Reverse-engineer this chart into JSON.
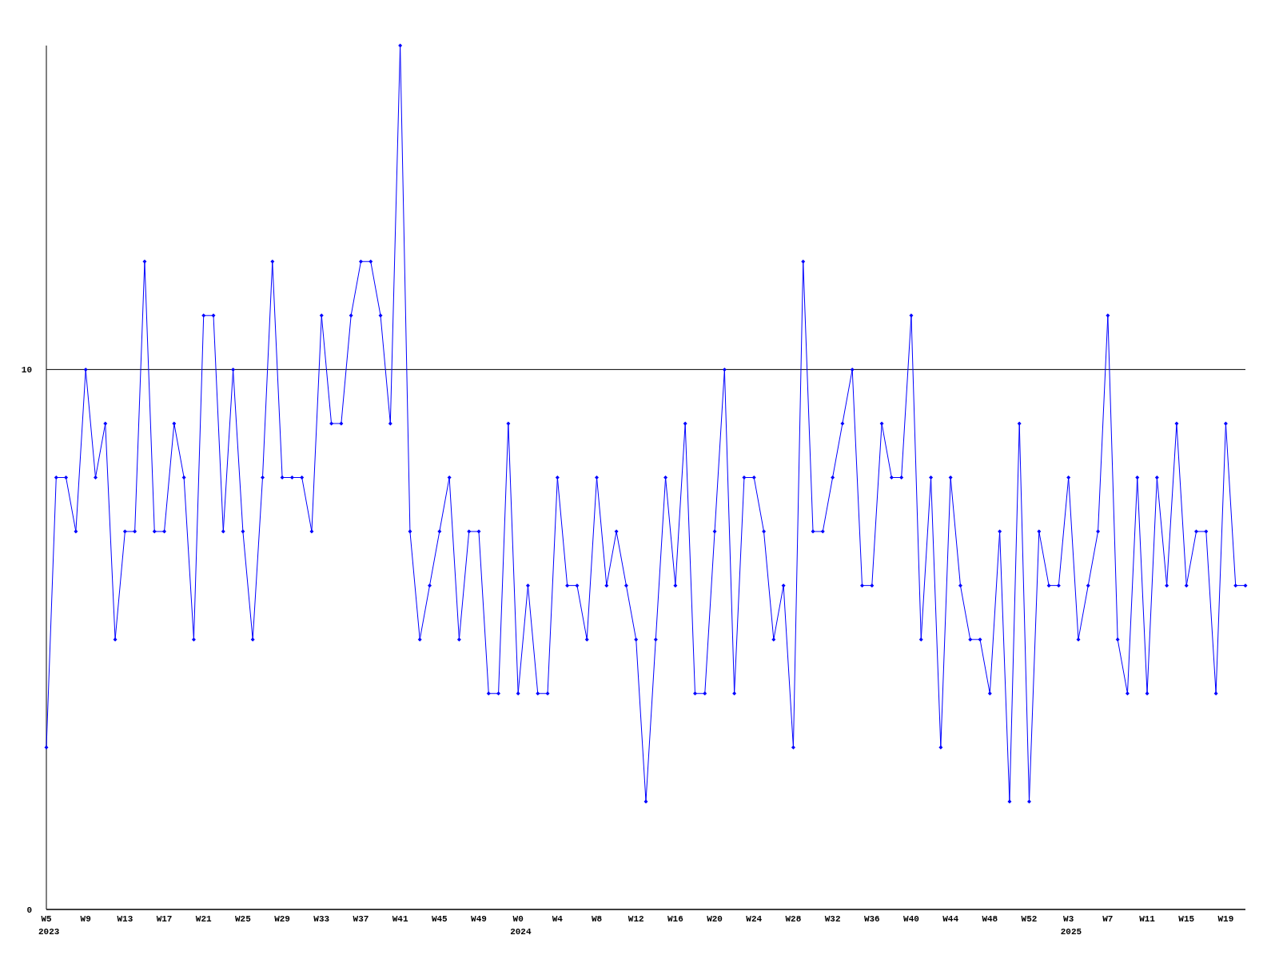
{
  "chart_data": {
    "type": "line",
    "categories": [
      "W5\n2023",
      null,
      null,
      null,
      "W9",
      null,
      null,
      null,
      "W13",
      null,
      null,
      null,
      "W17",
      null,
      null,
      null,
      "W21",
      null,
      null,
      null,
      "W25",
      null,
      null,
      null,
      "W29",
      null,
      null,
      null,
      "W33",
      null,
      null,
      null,
      "W37",
      null,
      null,
      null,
      "W41",
      null,
      null,
      null,
      "W45",
      null,
      null,
      null,
      "W49",
      null,
      null,
      null,
      "W0\n2024",
      null,
      null,
      null,
      "W4",
      null,
      null,
      null,
      "W8",
      null,
      null,
      null,
      "W12",
      null,
      null,
      null,
      "W16",
      null,
      null,
      null,
      "W20",
      null,
      null,
      null,
      "W24",
      null,
      null,
      null,
      "W28",
      null,
      null,
      null,
      "W32",
      null,
      null,
      null,
      "W36",
      null,
      null,
      null,
      "W40",
      null,
      null,
      null,
      "W44",
      null,
      null,
      null,
      "W48",
      null,
      null,
      null,
      "W52",
      null,
      null,
      null,
      "W3\n2025",
      null,
      null,
      null,
      "W7",
      null,
      null,
      null,
      "W11",
      null,
      null,
      null,
      "W15",
      null,
      null,
      null,
      "W19",
      null,
      null
    ],
    "series": [
      {
        "color": "#0000ff",
        "values": [
          3,
          8,
          8,
          7,
          10,
          8,
          9,
          5,
          7,
          7,
          12,
          7,
          7,
          9,
          8,
          5,
          11,
          11,
          7,
          10,
          7,
          5,
          8,
          12,
          8,
          8,
          8,
          7,
          11,
          9,
          9,
          11,
          12,
          12,
          11,
          9,
          16,
          7,
          5,
          6,
          7,
          8,
          5,
          7,
          7,
          4,
          4,
          9,
          4,
          6,
          4,
          4,
          8,
          6,
          6,
          5,
          8,
          6,
          7,
          6,
          5,
          2,
          5,
          8,
          6,
          9,
          4,
          4,
          7,
          10,
          4,
          8,
          8,
          7,
          5,
          6,
          3,
          12,
          7,
          7,
          8,
          9,
          10,
          6,
          6,
          9,
          8,
          8,
          11,
          5,
          8,
          3,
          8,
          6,
          5,
          5,
          4,
          7,
          2,
          9,
          2,
          7,
          6,
          6,
          8,
          5,
          6,
          7,
          11,
          5,
          4,
          8,
          4,
          8,
          6,
          9,
          6,
          7,
          7,
          4,
          9,
          6,
          6
        ]
      }
    ],
    "ylim": [
      0,
      16
    ],
    "yticks": [
      0,
      10
    ],
    "grid": "y",
    "marker": "diamond",
    "line_style": "solid"
  }
}
